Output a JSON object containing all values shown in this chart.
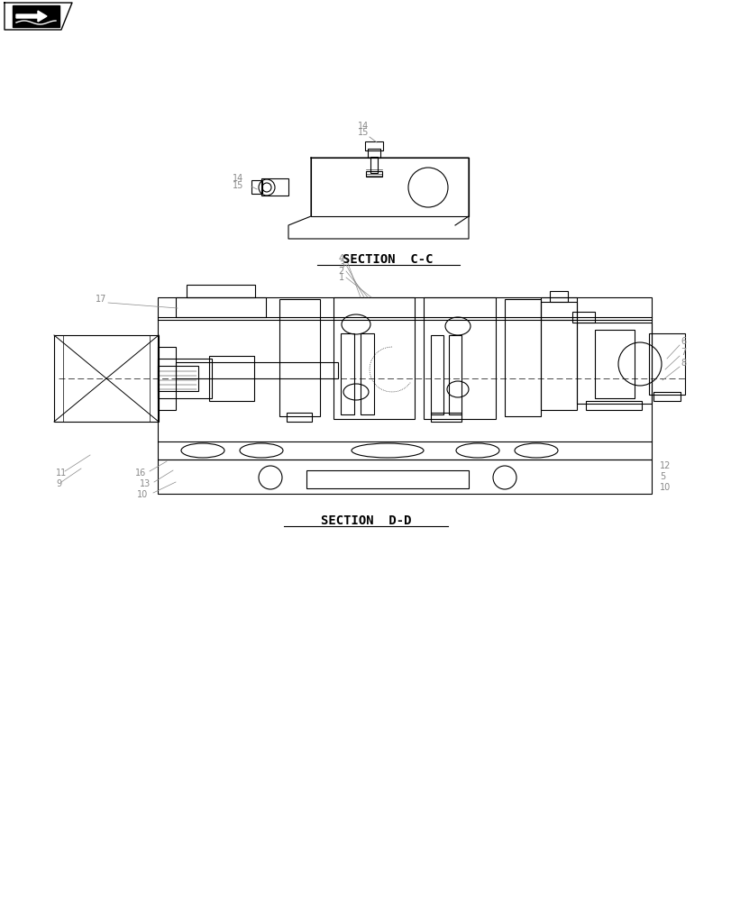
{
  "bg_color": "#ffffff",
  "line_color": "#000000",
  "label_color": "#888888",
  "title_color": "#000000",
  "section_cc_label": "SECTION  C-C",
  "section_dd_label": "SECTION  D-D",
  "fig_width": 8.12,
  "fig_height": 10.0
}
